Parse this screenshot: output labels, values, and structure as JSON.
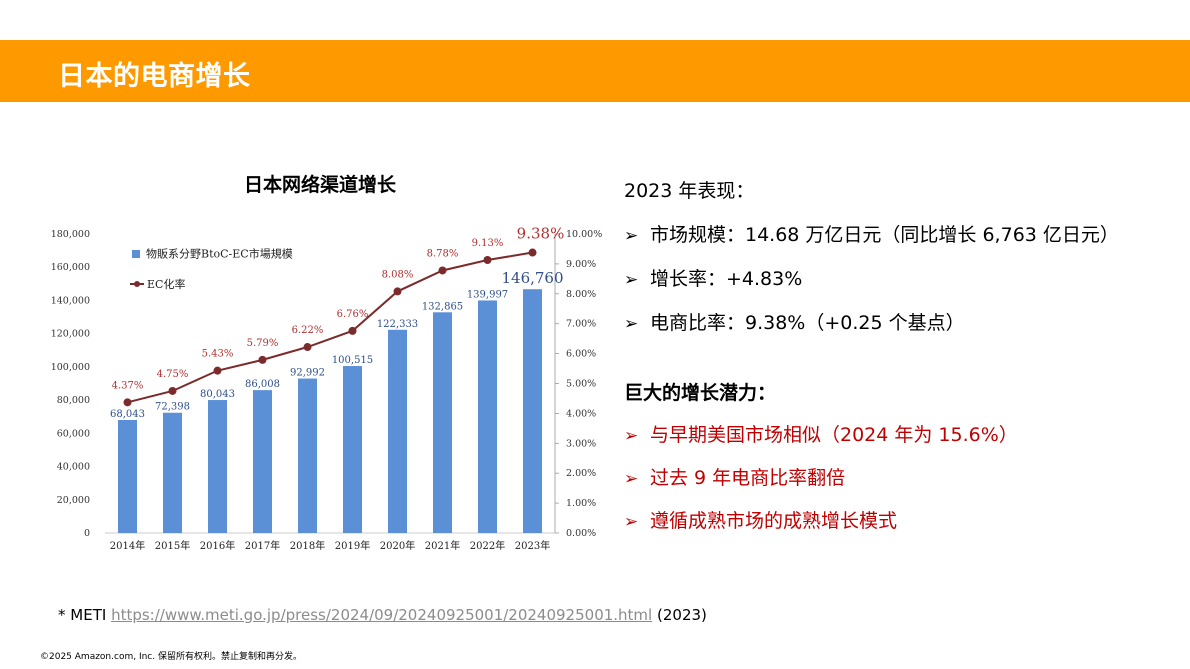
{
  "slide": {
    "title": "日本的电商增长",
    "chart_title": "日本网络渠道增长"
  },
  "right": {
    "heading": "2023 年表现：",
    "bullet_symbol": "➢",
    "items": [
      "市场规模：14.68 万亿日元（同比增长 6,763 亿日元）",
      "增长率：+4.83%",
      "电商比率：9.38%（+0.25 个基点）"
    ],
    "potential_heading": "巨大的增长潜力：",
    "potential_items": [
      "与早期美国市场相似（2024 年为 15.6%）",
      "过去 9 年电商比率翻倍",
      "遵循成熟市场的成熟增长模式"
    ]
  },
  "footnote": {
    "prefix": "* METI",
    "link": "https://www.meti.go.jp/press/2024/09/20240925001/20240925001.html",
    "suffix": "(2023)"
  },
  "copyright": "©2025 Amazon.com, Inc. 保留所有权利。禁止复制和再分发。",
  "colors": {
    "title_bar": "#FF9900",
    "bar": "#5B8FD6",
    "line": "#7B2B2B",
    "accent_red": "#C00000"
  },
  "chart_data": {
    "type": "bar",
    "categories": [
      "2014年",
      "2015年",
      "2016年",
      "2017年",
      "2018年",
      "2019年",
      "2020年",
      "2021年",
      "2022年",
      "2023年"
    ],
    "series": [
      {
        "name": "物販系分野BtoC-EC市場規模",
        "type": "bar",
        "axis": "left",
        "values": [
          68043,
          72398,
          80043,
          86008,
          92992,
          100515,
          122333,
          132865,
          139997,
          146760
        ],
        "labels": [
          "68,043",
          "72,398",
          "80,043",
          "86,008",
          "92,992",
          "100,515",
          "122,333",
          "132,865",
          "139,997",
          "146,760"
        ]
      },
      {
        "name": "EC化率",
        "type": "line",
        "axis": "right",
        "values": [
          4.37,
          4.75,
          5.43,
          5.79,
          6.22,
          6.76,
          8.08,
          8.78,
          9.13,
          9.38
        ],
        "labels": [
          "4.37%",
          "4.75%",
          "5.43%",
          "5.79%",
          "6.22%",
          "6.76%",
          "8.08%",
          "8.78%",
          "9.13%",
          "9.38%"
        ]
      }
    ],
    "ylim_left": [
      0,
      180000
    ],
    "ylim_right": [
      0,
      10
    ],
    "left_ticks": [
      "0",
      "20,000",
      "40,000",
      "60,000",
      "80,000",
      "100,000",
      "120,000",
      "140,000",
      "160,000",
      "180,000"
    ],
    "right_ticks": [
      "0.00%",
      "1.00%",
      "2.00%",
      "3.00%",
      "4.00%",
      "5.00%",
      "6.00%",
      "7.00%",
      "8.00%",
      "9.00%",
      "10.00%"
    ],
    "legend_position": "top-left",
    "grid": false
  }
}
